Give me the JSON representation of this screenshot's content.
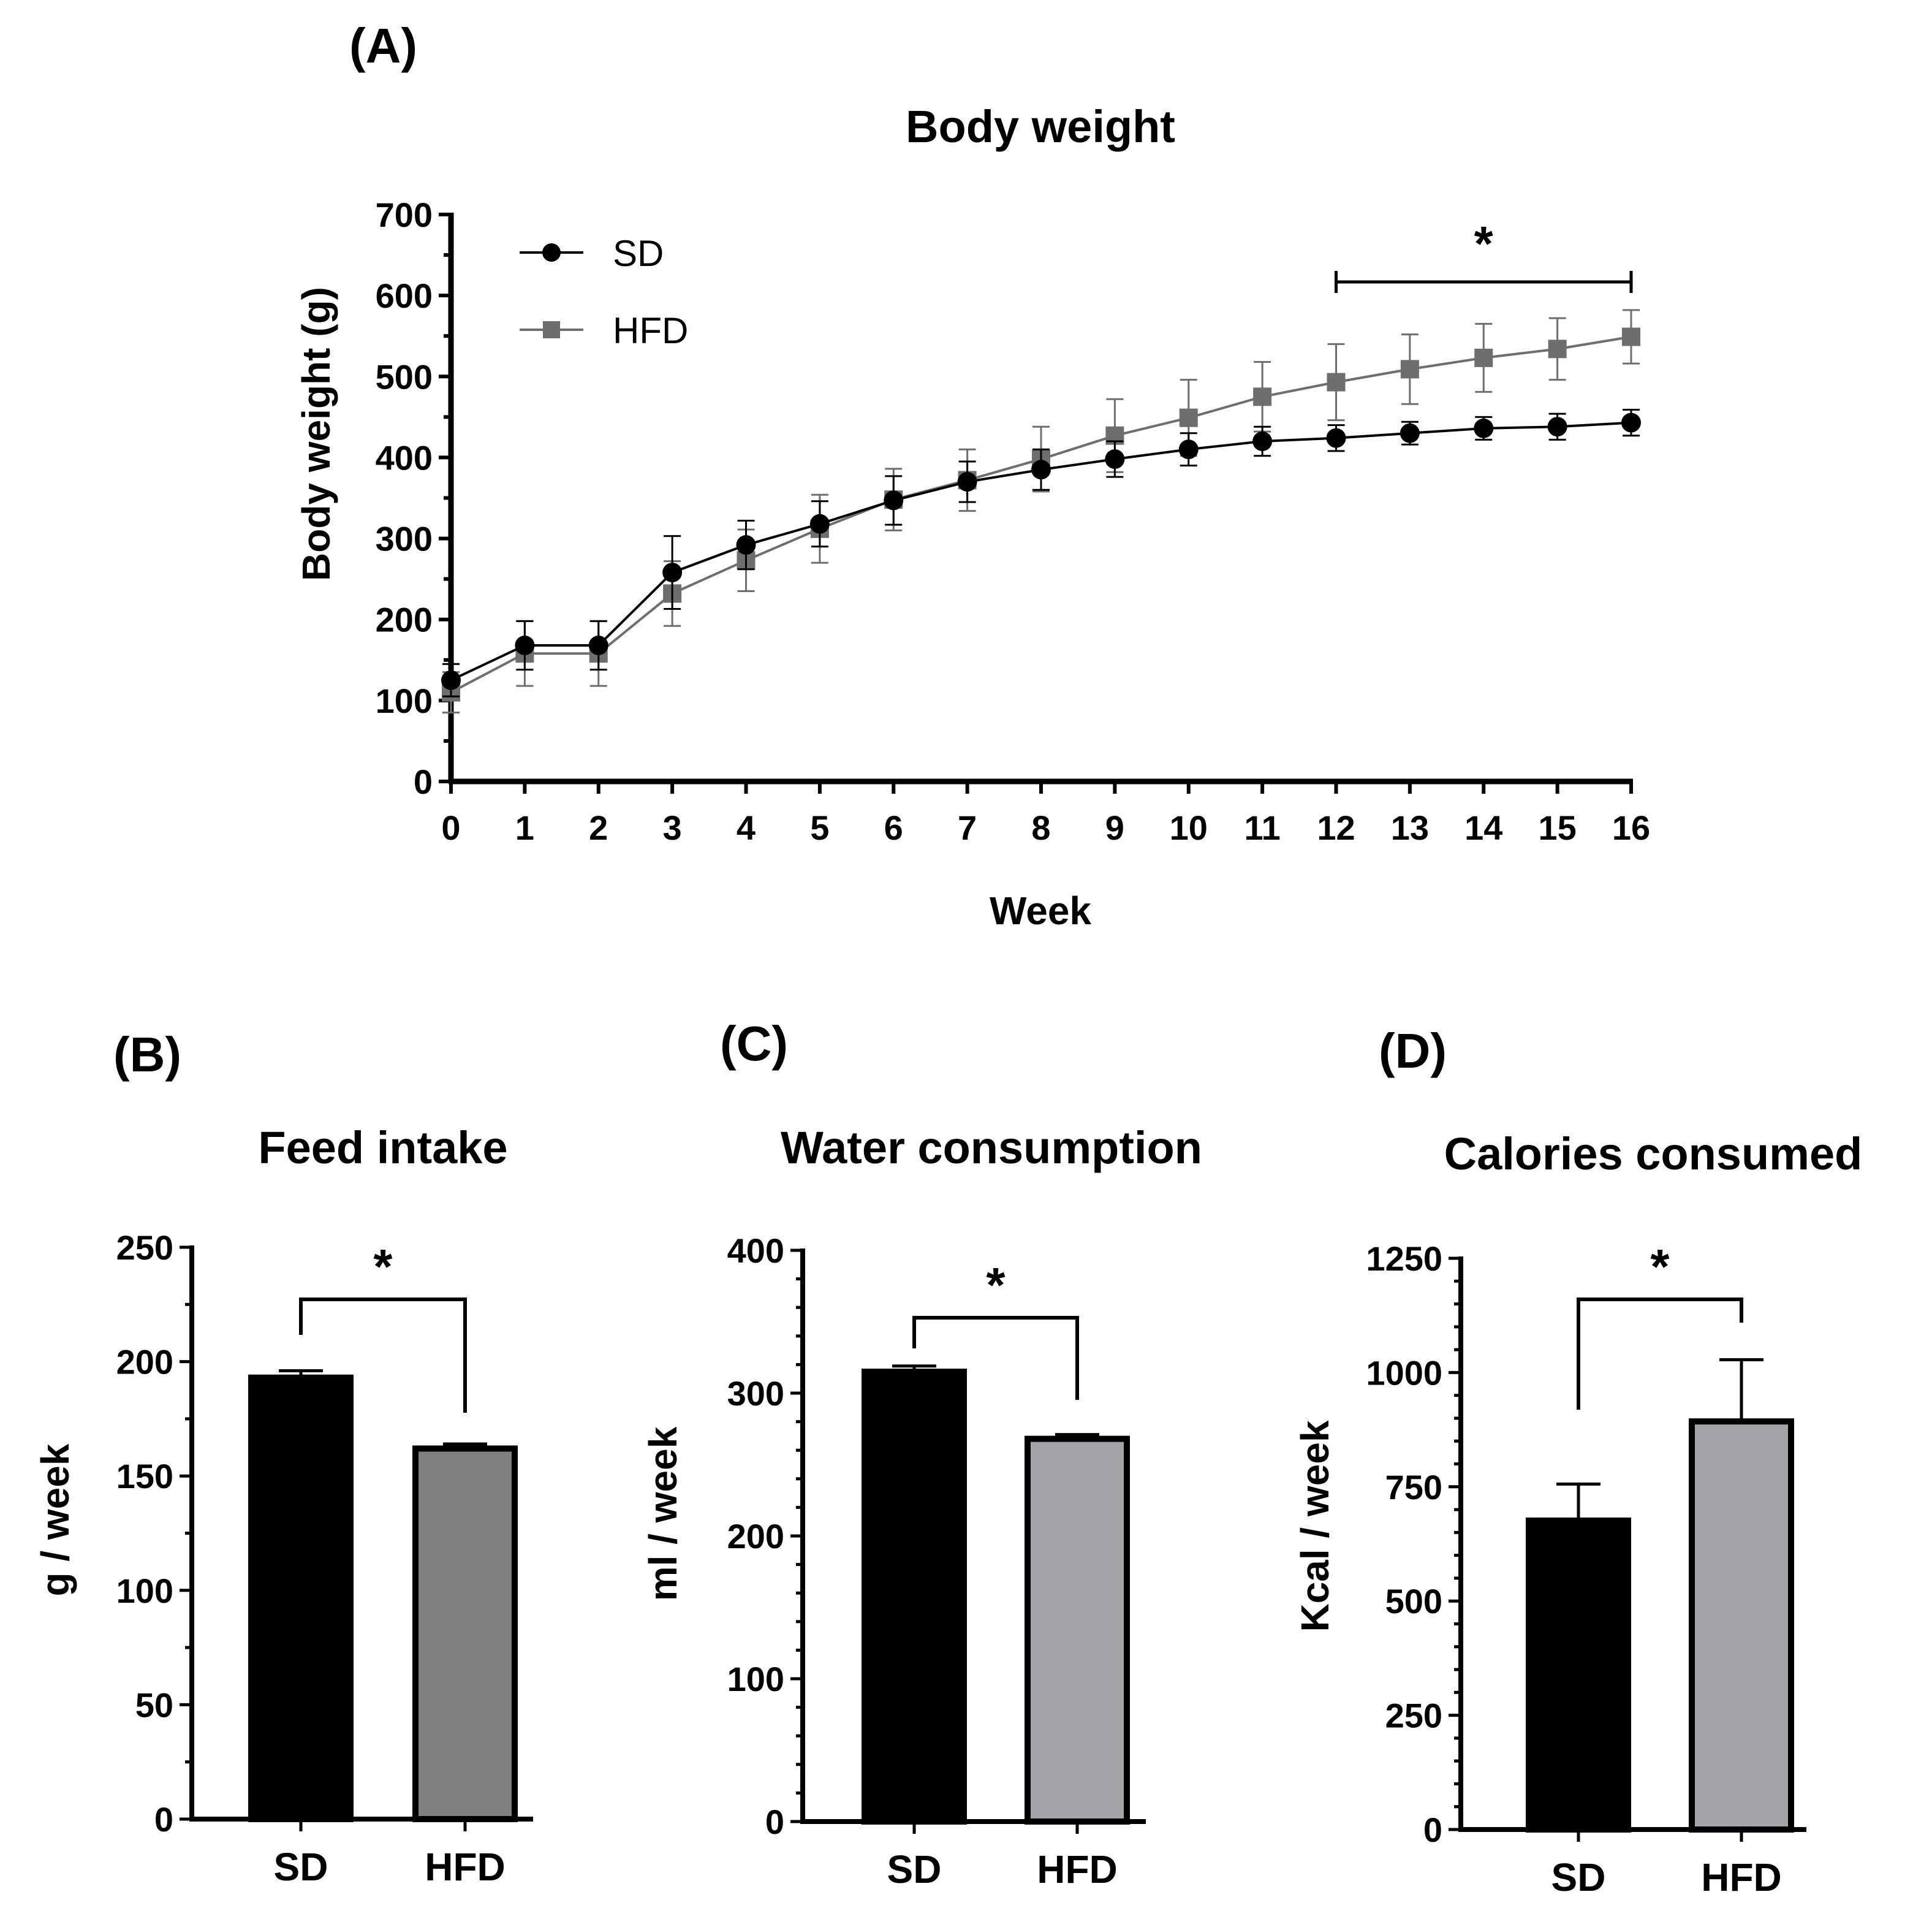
{
  "chart_data": [
    {
      "panel": "(A)",
      "type": "line",
      "title": "Body weight",
      "xlabel": "Week",
      "ylabel": "Body weight (g)",
      "x": [
        0,
        1,
        2,
        3,
        4,
        5,
        6,
        7,
        8,
        9,
        10,
        11,
        12,
        13,
        14,
        15,
        16
      ],
      "ylim": [
        0,
        700
      ],
      "yticks": [
        0,
        100,
        200,
        300,
        400,
        500,
        600,
        700
      ],
      "series": [
        {
          "name": "SD",
          "color": "#000000",
          "marker": "circle",
          "values": [
            125,
            168,
            168,
            258,
            292,
            318,
            347,
            370,
            385,
            398,
            410,
            420,
            424,
            430,
            436,
            438,
            443
          ],
          "errors": [
            20,
            30,
            30,
            45,
            30,
            28,
            30,
            25,
            25,
            22,
            20,
            18,
            16,
            14,
            14,
            16,
            16
          ]
        },
        {
          "name": "HFD",
          "color": "#6e6e6e",
          "marker": "square",
          "values": [
            110,
            158,
            158,
            232,
            273,
            312,
            348,
            372,
            398,
            427,
            449,
            475,
            493,
            509,
            523,
            534,
            549
          ],
          "errors": [
            25,
            40,
            40,
            40,
            38,
            42,
            38,
            38,
            40,
            45,
            47,
            43,
            47,
            43,
            42,
            38,
            33
          ]
        }
      ],
      "legend_position": "top-left",
      "significance": {
        "from_week": 12,
        "to_week": 16,
        "label": "*"
      }
    },
    {
      "panel": "(B)",
      "type": "bar",
      "title": "Feed intake",
      "xlabel": "",
      "ylabel": "g / week",
      "categories": [
        "SD",
        "HFD"
      ],
      "values": [
        193,
        162
      ],
      "errors": [
        3,
        2
      ],
      "colors": [
        "#000000",
        "#808080"
      ],
      "ylim": [
        0,
        250
      ],
      "yticks": [
        0,
        50,
        100,
        150,
        200,
        250
      ],
      "significance_label": "*"
    },
    {
      "panel": "(C)",
      "type": "bar",
      "title": "Water consumption",
      "xlabel": "",
      "ylabel": "ml / week",
      "categories": [
        "SD",
        "HFD"
      ],
      "values": [
        315,
        268
      ],
      "errors": [
        4,
        3
      ],
      "colors": [
        "#000000",
        "#a3a3a8"
      ],
      "ylim": [
        0,
        400
      ],
      "yticks": [
        0,
        100,
        200,
        300,
        400
      ],
      "significance_label": "*"
    },
    {
      "panel": "(D)",
      "type": "bar",
      "title": "Calories consumed",
      "xlabel": "",
      "ylabel": "Kcal / week",
      "categories": [
        "SD",
        "HFD"
      ],
      "values": [
        676,
        893
      ],
      "errors": [
        80,
        135
      ],
      "colors": [
        "#000000",
        "#a3a3a8"
      ],
      "ylim": [
        0,
        1250
      ],
      "yticks": [
        0,
        250,
        500,
        750,
        1000,
        1250
      ],
      "significance_label": "*"
    }
  ]
}
